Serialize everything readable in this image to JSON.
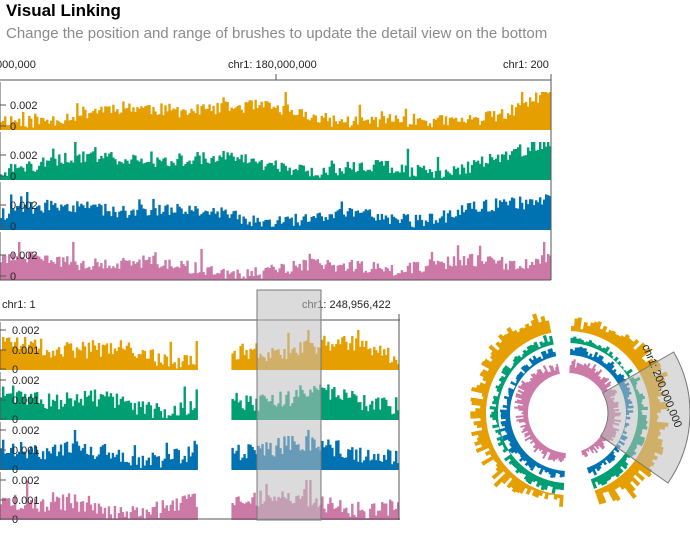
{
  "header": {
    "title": "Visual Linking",
    "subtitle": "Change the position and range of brushes to update the detail view on the bottom"
  },
  "colors": {
    "orange": "#e69f00",
    "green": "#009e73",
    "blue": "#0072b2",
    "pink": "#cc79a7",
    "brush": "#d3d3d3",
    "brush_stroke": "#777777"
  },
  "chart_data": [
    {
      "type": "bar",
      "view": "detail",
      "x_axis_labels": [
        ",000,000",
        "chr1: 180,000,000",
        "chr1: 200"
      ],
      "series": [
        {
          "color": "#e69f00",
          "ytick_labels": [
            "0.002",
            "0"
          ]
        },
        {
          "color": "#009e73",
          "ytick_labels": [
            "0.002",
            "0"
          ]
        },
        {
          "color": "#0072b2",
          "ytick_labels": [
            "0.002",
            "0"
          ]
        },
        {
          "color": "#cc79a7",
          "ytick_labels": [
            "0.002",
            "0"
          ]
        }
      ]
    },
    {
      "type": "bar",
      "view": "overview-linear",
      "x_axis_labels": [
        "chr1: 1",
        "chr1: 248,956,422"
      ],
      "series": [
        {
          "color": "#e69f00",
          "ytick_labels": [
            "0.002",
            "0.001",
            "0"
          ]
        },
        {
          "color": "#009e73",
          "ytick_labels": [
            "0.002",
            "0.001",
            "0"
          ]
        },
        {
          "color": "#0072b2",
          "ytick_labels": [
            "0.002",
            "0.001",
            "0"
          ]
        },
        {
          "color": "#cc79a7",
          "ytick_labels": [
            "0.002",
            "0.001",
            "0"
          ]
        }
      ],
      "brush": {
        "label": ""
      }
    },
    {
      "type": "bar",
      "view": "overview-circular",
      "brush_label": "chr1: 200,000,000"
    }
  ]
}
